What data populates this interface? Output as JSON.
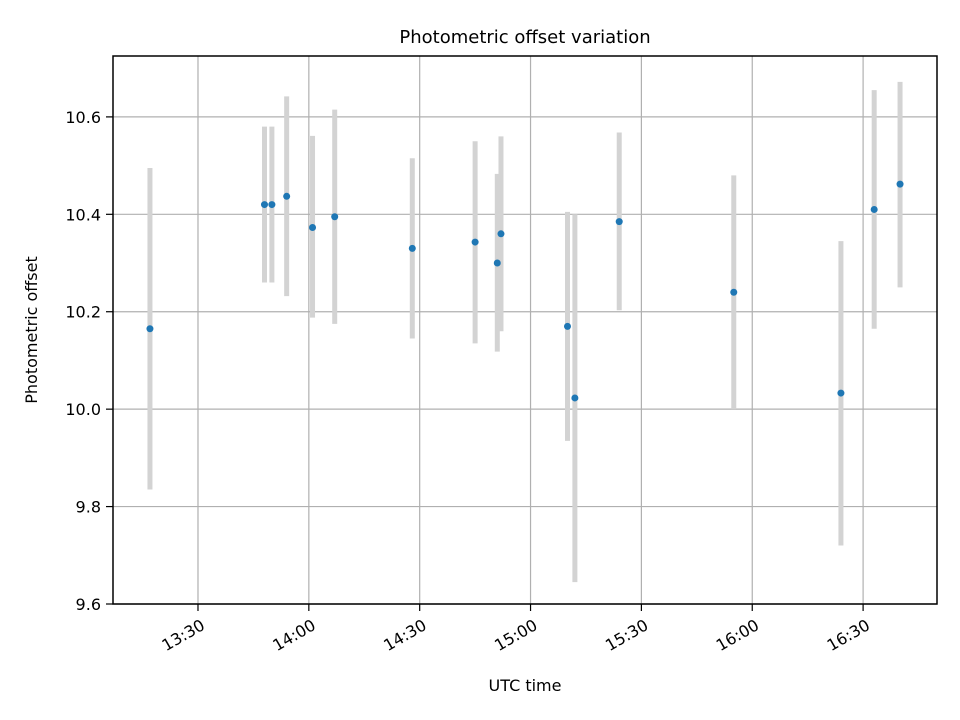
{
  "chart_data": {
    "type": "scatter",
    "title": "Photometric offset variation",
    "xlabel": "UTC time",
    "ylabel": "Photometric offset",
    "x_tick_labels": [
      "13:30",
      "14:00",
      "14:30",
      "15:00",
      "15:30",
      "16:00",
      "16:30"
    ],
    "x_tick_values": [
      "13:30",
      "14:00",
      "14:30",
      "15:00",
      "15:30",
      "16:00",
      "16:30"
    ],
    "xlim": [
      "13:07",
      "16:50"
    ],
    "ylim": [
      9.6,
      10.725
    ],
    "y_tick_labels": [
      "9.6",
      "9.8",
      "10.0",
      "10.2",
      "10.4",
      "10.6"
    ],
    "y_tick_values": [
      9.6,
      9.8,
      10.0,
      10.2,
      10.4,
      10.6
    ],
    "grid": true,
    "marker_color": "#1f77b4",
    "errorbar_color": "#d3d3d3",
    "points": [
      {
        "time": "13:17",
        "y": 10.165,
        "err_low": 9.835,
        "err_high": 10.495
      },
      {
        "time": "13:48",
        "y": 10.42,
        "err_low": 10.26,
        "err_high": 10.58
      },
      {
        "time": "13:50",
        "y": 10.42,
        "err_low": 10.26,
        "err_high": 10.58
      },
      {
        "time": "13:54",
        "y": 10.437,
        "err_low": 10.232,
        "err_high": 10.642
      },
      {
        "time": "14:01",
        "y": 10.373,
        "err_low": 10.188,
        "err_high": 10.561
      },
      {
        "time": "14:07",
        "y": 10.395,
        "err_low": 10.175,
        "err_high": 10.615
      },
      {
        "time": "14:28",
        "y": 10.33,
        "err_low": 10.145,
        "err_high": 10.515
      },
      {
        "time": "14:45",
        "y": 10.343,
        "err_low": 10.135,
        "err_high": 10.55
      },
      {
        "time": "14:51",
        "y": 10.3,
        "err_low": 10.118,
        "err_high": 10.483
      },
      {
        "time": "14:52",
        "y": 10.36,
        "err_low": 10.16,
        "err_high": 10.56
      },
      {
        "time": "15:10",
        "y": 10.17,
        "err_low": 9.935,
        "err_high": 10.405
      },
      {
        "time": "15:12",
        "y": 10.023,
        "err_low": 9.645,
        "err_high": 10.4
      },
      {
        "time": "15:24",
        "y": 10.385,
        "err_low": 10.203,
        "err_high": 10.568
      },
      {
        "time": "15:55",
        "y": 10.24,
        "err_low": 10.0,
        "err_high": 10.48
      },
      {
        "time": "16:24",
        "y": 10.033,
        "err_low": 9.72,
        "err_high": 10.345
      },
      {
        "time": "16:33",
        "y": 10.41,
        "err_low": 10.165,
        "err_high": 10.655
      },
      {
        "time": "16:40",
        "y": 10.462,
        "err_low": 10.25,
        "err_high": 10.672
      }
    ]
  }
}
